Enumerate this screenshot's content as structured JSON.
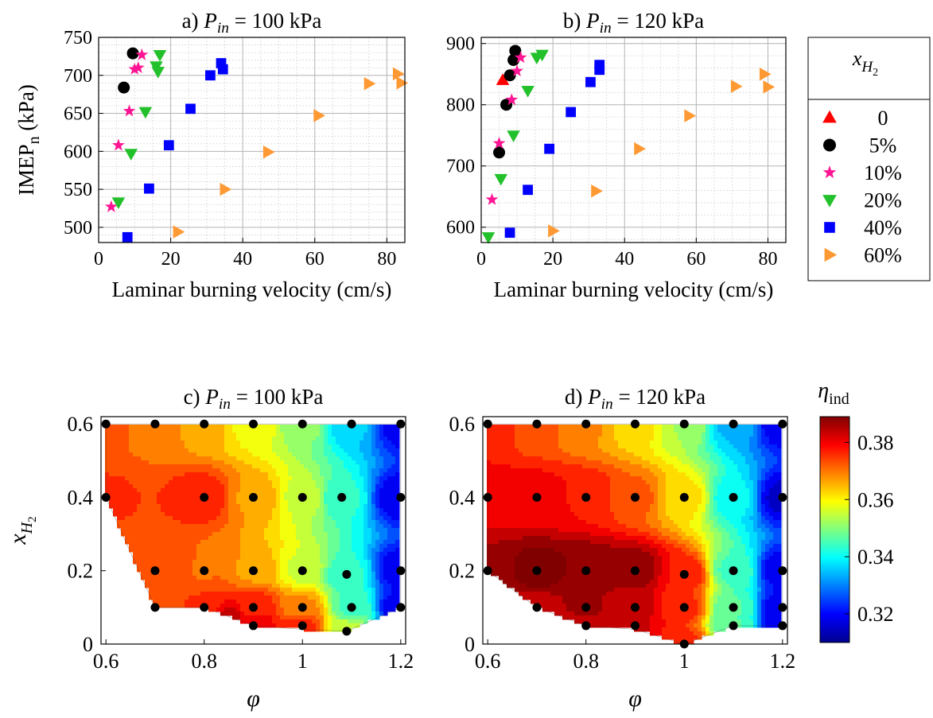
{
  "chart_data": [
    {
      "id": "a",
      "type": "scatter",
      "title_prefix": "a) ",
      "title_var": "P",
      "title_sub": "in",
      "title_suffix": " = 100 kPa",
      "xlabel": "Laminar burning velocity (cm/s)",
      "ylabel_main": "IMEP",
      "ylabel_sub": "n",
      "ylabel_unit": " (kPa)",
      "xlim": [
        0,
        85
      ],
      "ylim": [
        480,
        750
      ],
      "xticks": [
        0,
        20,
        40,
        60,
        80
      ],
      "yticks": [
        500,
        550,
        600,
        650,
        700,
        750
      ],
      "grid": true,
      "series": [
        {
          "name": "0",
          "marker": "triangle-up",
          "color": "#ff0000",
          "points": []
        },
        {
          "name": "5%",
          "marker": "circle",
          "color": "#000000",
          "points": [
            [
              9.5,
              729
            ],
            [
              7,
              684
            ]
          ]
        },
        {
          "name": "10%",
          "marker": "star",
          "color": "#ff1493",
          "points": [
            [
              12,
              727
            ],
            [
              11,
              710
            ],
            [
              10,
              708
            ],
            [
              8.5,
              653
            ],
            [
              5.5,
              608
            ],
            [
              3.5,
              527
            ]
          ]
        },
        {
          "name": "20%",
          "marker": "triangle-down",
          "color": "#22c02a",
          "points": [
            [
              17,
              727
            ],
            [
              16,
              712
            ],
            [
              16.5,
              705
            ],
            [
              13,
              652
            ],
            [
              9,
              597
            ],
            [
              5.5,
              533
            ]
          ]
        },
        {
          "name": "40%",
          "marker": "square",
          "color": "#0000ff",
          "points": [
            [
              34,
              716
            ],
            [
              34.5,
              708
            ],
            [
              31,
              700
            ],
            [
              25.5,
              656
            ],
            [
              19.5,
              608
            ],
            [
              14,
              551
            ],
            [
              8,
              487
            ]
          ]
        },
        {
          "name": "60%",
          "marker": "triangle-right",
          "color": "#ff9933",
          "points": [
            [
              83,
              702
            ],
            [
              84,
              690
            ],
            [
              75,
              689
            ],
            [
              61,
              647
            ],
            [
              47,
              599
            ],
            [
              35,
              550
            ],
            [
              22,
              494
            ]
          ]
        }
      ]
    },
    {
      "id": "b",
      "type": "scatter",
      "title_prefix": "b) ",
      "title_var": "P",
      "title_sub": "in",
      "title_suffix": " = 120 kPa",
      "xlabel": "Laminar burning velocity (cm/s)",
      "xlim": [
        0,
        85
      ],
      "ylim": [
        575,
        910
      ],
      "xticks": [
        0,
        20,
        40,
        60,
        80
      ],
      "yticks": [
        600,
        700,
        800,
        900
      ],
      "grid": true,
      "series": [
        {
          "name": "0",
          "marker": "triangle-up",
          "color": "#ff0000",
          "points": [
            [
              6,
              840
            ]
          ]
        },
        {
          "name": "5%",
          "marker": "circle",
          "color": "#000000",
          "points": [
            [
              9.5,
              888
            ],
            [
              9,
              873
            ],
            [
              8,
              848
            ],
            [
              7,
              800
            ],
            [
              5,
              722
            ]
          ]
        },
        {
          "name": "10%",
          "marker": "star",
          "color": "#ff1493",
          "points": [
            [
              11,
              877
            ],
            [
              10,
              855
            ],
            [
              8.5,
              808
            ],
            [
              5,
              737
            ],
            [
              3,
              645
            ]
          ]
        },
        {
          "name": "20%",
          "marker": "triangle-down",
          "color": "#22c02a",
          "points": [
            [
              17,
              882
            ],
            [
              15.5,
              877
            ],
            [
              13,
              823
            ],
            [
              9,
              750
            ],
            [
              5.5,
              679
            ],
            [
              2,
              584
            ]
          ]
        },
        {
          "name": "40%",
          "marker": "square",
          "color": "#0000ff",
          "points": [
            [
              33,
              865
            ],
            [
              33,
              857
            ],
            [
              30.5,
              837
            ],
            [
              25,
              788
            ],
            [
              19,
              728
            ],
            [
              13,
              661
            ],
            [
              8,
              591
            ]
          ]
        },
        {
          "name": "60%",
          "marker": "triangle-right",
          "color": "#ff9933",
          "points": [
            [
              79,
              850
            ],
            [
              80,
              829
            ],
            [
              71,
              830
            ],
            [
              58,
              782
            ],
            [
              44,
              728
            ],
            [
              32,
              659
            ],
            [
              20,
              594
            ]
          ]
        }
      ]
    },
    {
      "id": "c",
      "type": "heatmap",
      "subtype": "contour",
      "title_prefix": "c) ",
      "title_var": "P",
      "title_sub": "in",
      "title_suffix": " = 100 kPa",
      "xlabel": "φ",
      "ylabel_main": "x",
      "ylabel_sub": "H",
      "ylabel_subsub": "2",
      "xlim": [
        0.59,
        1.21
      ],
      "ylim": [
        0,
        0.62
      ],
      "xticks": [
        0.6,
        0.8,
        1,
        1.2
      ],
      "yticks": [
        0,
        0.2,
        0.4,
        0.6
      ],
      "xtick_labels": [
        "0.6",
        "0.8",
        "1",
        "1.2"
      ],
      "ytick_labels": [
        "0",
        "0.2",
        "0.4",
        "0.6"
      ],
      "boundary": [
        [
          0.6,
          0.6
        ],
        [
          1.2,
          0.6
        ],
        [
          1.2,
          0.1
        ],
        [
          1.09,
          0.035
        ],
        [
          1.0,
          0.04
        ],
        [
          0.9,
          0.05
        ],
        [
          0.8,
          0.1
        ],
        [
          0.7,
          0.1
        ],
        [
          0.6,
          0.4
        ]
      ],
      "samples": [
        [
          0.6,
          0.6,
          0.372
        ],
        [
          0.7,
          0.6,
          0.37
        ],
        [
          0.8,
          0.6,
          0.366
        ],
        [
          0.9,
          0.6,
          0.359
        ],
        [
          1.0,
          0.6,
          0.351
        ],
        [
          1.1,
          0.6,
          0.336
        ],
        [
          1.2,
          0.6,
          0.318
        ],
        [
          0.6,
          0.4,
          0.375
        ],
        [
          0.8,
          0.4,
          0.377
        ],
        [
          0.9,
          0.4,
          0.367
        ],
        [
          1.0,
          0.4,
          0.356
        ],
        [
          1.08,
          0.4,
          0.343
        ],
        [
          1.2,
          0.4,
          0.318
        ],
        [
          0.7,
          0.2,
          0.372
        ],
        [
          0.8,
          0.2,
          0.371
        ],
        [
          0.9,
          0.2,
          0.367
        ],
        [
          1.0,
          0.2,
          0.356
        ],
        [
          1.09,
          0.19,
          0.343
        ],
        [
          1.2,
          0.2,
          0.318
        ],
        [
          0.7,
          0.1,
          0.373
        ],
        [
          0.8,
          0.1,
          0.375
        ],
        [
          0.9,
          0.1,
          0.377
        ],
        [
          1.0,
          0.1,
          0.368
        ],
        [
          1.1,
          0.1,
          0.345
        ],
        [
          1.2,
          0.1,
          0.318
        ],
        [
          0.85,
          0.07,
          0.384
        ],
        [
          0.9,
          0.05,
          0.381
        ],
        [
          1.0,
          0.05,
          0.376
        ],
        [
          1.09,
          0.035,
          0.355
        ]
      ],
      "points": [
        [
          0.6,
          0.6
        ],
        [
          0.7,
          0.6
        ],
        [
          0.8,
          0.6
        ],
        [
          0.9,
          0.6
        ],
        [
          1.0,
          0.6
        ],
        [
          1.1,
          0.6
        ],
        [
          1.2,
          0.6
        ],
        [
          0.6,
          0.4
        ],
        [
          0.8,
          0.4
        ],
        [
          0.9,
          0.4
        ],
        [
          1.0,
          0.4
        ],
        [
          1.08,
          0.4
        ],
        [
          1.2,
          0.4
        ],
        [
          0.7,
          0.2
        ],
        [
          0.8,
          0.2
        ],
        [
          0.9,
          0.2
        ],
        [
          1.0,
          0.2
        ],
        [
          1.09,
          0.19
        ],
        [
          1.2,
          0.2
        ],
        [
          0.7,
          0.1
        ],
        [
          0.8,
          0.1
        ],
        [
          0.9,
          0.1
        ],
        [
          1.0,
          0.1
        ],
        [
          1.1,
          0.1
        ],
        [
          1.2,
          0.1
        ],
        [
          0.9,
          0.05
        ],
        [
          1.0,
          0.05
        ],
        [
          1.09,
          0.035
        ]
      ]
    },
    {
      "id": "d",
      "type": "heatmap",
      "subtype": "contour",
      "title_prefix": "d) ",
      "title_var": "P",
      "title_sub": "in",
      "title_suffix": " = 120 kPa",
      "xlabel": "φ",
      "xlim": [
        0.59,
        1.21
      ],
      "ylim": [
        0,
        0.62
      ],
      "xticks": [
        0.6,
        0.8,
        1,
        1.2
      ],
      "yticks": [
        0,
        0.2,
        0.4,
        0.6
      ],
      "xtick_labels": [
        "0.6",
        "0.8",
        "1",
        "1.2"
      ],
      "ytick_labels": [
        "0",
        "0.2",
        "0.4",
        "0.6"
      ],
      "boundary": [
        [
          0.6,
          0.6
        ],
        [
          1.2,
          0.6
        ],
        [
          1.2,
          0.05
        ],
        [
          1.1,
          0.05
        ],
        [
          1.0,
          0.0
        ],
        [
          0.9,
          0.04
        ],
        [
          0.8,
          0.05
        ],
        [
          0.7,
          0.1
        ],
        [
          0.6,
          0.2
        ]
      ],
      "samples": [
        [
          0.6,
          0.6,
          0.378
        ],
        [
          0.7,
          0.6,
          0.372
        ],
        [
          0.8,
          0.6,
          0.368
        ],
        [
          0.9,
          0.6,
          0.362
        ],
        [
          1.0,
          0.6,
          0.353
        ],
        [
          1.1,
          0.6,
          0.334
        ],
        [
          1.2,
          0.6,
          0.318
        ],
        [
          0.6,
          0.4,
          0.38
        ],
        [
          0.7,
          0.4,
          0.38
        ],
        [
          0.8,
          0.4,
          0.378
        ],
        [
          0.9,
          0.4,
          0.372
        ],
        [
          1.0,
          0.4,
          0.362
        ],
        [
          1.1,
          0.4,
          0.34
        ],
        [
          1.2,
          0.4,
          0.316
        ],
        [
          0.6,
          0.2,
          0.386
        ],
        [
          0.7,
          0.2,
          0.391
        ],
        [
          0.8,
          0.2,
          0.389
        ],
        [
          0.9,
          0.2,
          0.388
        ],
        [
          1.0,
          0.19,
          0.378
        ],
        [
          1.1,
          0.2,
          0.345
        ],
        [
          1.2,
          0.2,
          0.318
        ],
        [
          0.7,
          0.1,
          0.384
        ],
        [
          0.8,
          0.1,
          0.386
        ],
        [
          0.9,
          0.1,
          0.383
        ],
        [
          1.0,
          0.1,
          0.376
        ],
        [
          1.1,
          0.1,
          0.346
        ],
        [
          1.2,
          0.1,
          0.318
        ],
        [
          0.8,
          0.05,
          0.383
        ],
        [
          0.9,
          0.05,
          0.382
        ],
        [
          1.0,
          0.0,
          0.376
        ],
        [
          1.1,
          0.05,
          0.346
        ],
        [
          1.2,
          0.05,
          0.318
        ]
      ],
      "points": [
        [
          0.6,
          0.6
        ],
        [
          0.7,
          0.6
        ],
        [
          0.8,
          0.6
        ],
        [
          0.9,
          0.6
        ],
        [
          1.0,
          0.6
        ],
        [
          1.1,
          0.6
        ],
        [
          1.2,
          0.6
        ],
        [
          0.6,
          0.4
        ],
        [
          0.7,
          0.4
        ],
        [
          0.8,
          0.4
        ],
        [
          0.9,
          0.4
        ],
        [
          1.0,
          0.4
        ],
        [
          1.1,
          0.4
        ],
        [
          1.2,
          0.4
        ],
        [
          0.6,
          0.2
        ],
        [
          0.7,
          0.2
        ],
        [
          0.8,
          0.2
        ],
        [
          0.9,
          0.2
        ],
        [
          1.0,
          0.19
        ],
        [
          1.1,
          0.2
        ],
        [
          1.2,
          0.2
        ],
        [
          0.7,
          0.1
        ],
        [
          0.8,
          0.1
        ],
        [
          0.9,
          0.1
        ],
        [
          1.0,
          0.1
        ],
        [
          1.1,
          0.1
        ],
        [
          1.2,
          0.1
        ],
        [
          0.8,
          0.05
        ],
        [
          0.9,
          0.05
        ],
        [
          1.0,
          0.0
        ],
        [
          1.1,
          0.05
        ],
        [
          1.2,
          0.05
        ]
      ]
    }
  ],
  "legend": {
    "title_var": "x",
    "title_sub": "H",
    "title_subsub": "2",
    "placement": "right of top panels",
    "entries": [
      {
        "label": "0",
        "marker": "triangle-up",
        "color": "#ff0000"
      },
      {
        "label": "5%",
        "marker": "circle",
        "color": "#000000"
      },
      {
        "label": "10%",
        "marker": "star",
        "color": "#ff1493"
      },
      {
        "label": "20%",
        "marker": "triangle-down",
        "color": "#22c02a"
      },
      {
        "label": "40%",
        "marker": "square",
        "color": "#0000ff"
      },
      {
        "label": "60%",
        "marker": "triangle-right",
        "color": "#ff9933"
      }
    ]
  },
  "colorbar": {
    "label_var": "η",
    "label_sub": "ind",
    "clim": [
      0.31,
      0.389
    ],
    "ticks": [
      0.32,
      0.34,
      0.36,
      0.38
    ],
    "tick_labels": [
      "0.32",
      "0.34",
      "0.36",
      "0.38"
    ],
    "colormap": "jet"
  }
}
